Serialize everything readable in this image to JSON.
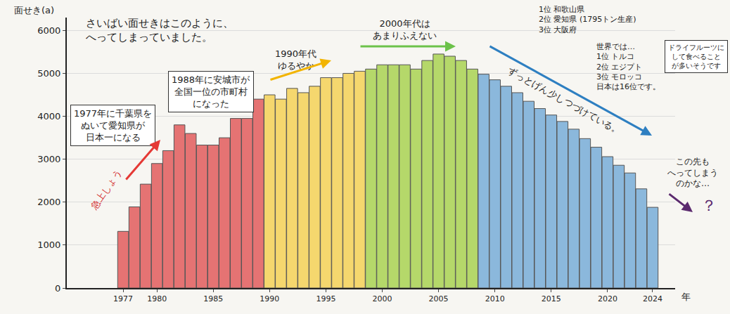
{
  "chart_data": {
    "type": "bar",
    "title": "さいばい面せきはこのように、\nへってしまっていました。",
    "y_label": "面せき(a)",
    "x_label": "年",
    "x": [
      1977,
      1978,
      1979,
      1980,
      1981,
      1982,
      1983,
      1984,
      1985,
      1986,
      1987,
      1988,
      1989,
      1990,
      1991,
      1992,
      1993,
      1994,
      1995,
      1996,
      1997,
      1998,
      1999,
      2000,
      2001,
      2002,
      2003,
      2004,
      2005,
      2006,
      2007,
      2008,
      2009,
      2010,
      2011,
      2012,
      2013,
      2014,
      2015,
      2016,
      2017,
      2018,
      2019,
      2020,
      2021,
      2022,
      2023,
      2024
    ],
    "values": [
      1320,
      1890,
      2420,
      2900,
      3200,
      3800,
      3600,
      3330,
      3330,
      3500,
      3950,
      3950,
      4400,
      4500,
      4400,
      4650,
      4550,
      4700,
      4900,
      4900,
      5000,
      5050,
      5100,
      5200,
      5200,
      5200,
      5100,
      5300,
      5450,
      5400,
      5300,
      5100,
      4980,
      4850,
      4700,
      4550,
      4350,
      4180,
      4030,
      3880,
      3700,
      3480,
      3280,
      3060,
      2860,
      2680,
      2310,
      1880
    ],
    "colors": [
      "#e57373",
      "#e57373",
      "#e57373",
      "#e57373",
      "#e57373",
      "#e57373",
      "#e57373",
      "#e57373",
      "#e57373",
      "#e57373",
      "#e57373",
      "#e57373",
      "#e57373",
      "#f5d76e",
      "#f5d76e",
      "#f5d76e",
      "#f5d76e",
      "#f5d76e",
      "#f5d76e",
      "#f5d76e",
      "#f5d76e",
      "#f5d76e",
      "#b5d86a",
      "#b5d86a",
      "#b5d86a",
      "#b5d86a",
      "#b5d86a",
      "#b5d86a",
      "#b5d86a",
      "#b5d86a",
      "#b5d86a",
      "#b5d86a",
      "#8bb8dc",
      "#8bb8dc",
      "#8bb8dc",
      "#8bb8dc",
      "#8bb8dc",
      "#8bb8dc",
      "#8bb8dc",
      "#8bb8dc",
      "#8bb8dc",
      "#8bb8dc",
      "#8bb8dc",
      "#8bb8dc",
      "#8bb8dc",
      "#8bb8dc",
      "#8bb8dc",
      "#8bb8dc"
    ],
    "xlim": [
      1972,
      2026
    ],
    "xticks": [
      1977,
      1980,
      1985,
      1990,
      1995,
      2000,
      2005,
      2010,
      2015,
      2020,
      2024
    ],
    "ylim": [
      0,
      6300
    ],
    "yticks": [
      0,
      1000,
      2000,
      3000,
      4000,
      5000,
      6000
    ],
    "grid": true,
    "annotations": [
      "1977年に千葉県を\nぬいて愛知県が\n日本一になる",
      "急上しょう",
      "1988年に安城市が\n全国一位の市町村\nになった",
      "1990年代\nゆるやか",
      "2000年代は\nあまりふえない",
      "ずっとげん少しつづけている。",
      "1位 和歌山県\n2位 愛知県 (1795トン生産)\n3位 大阪府",
      "世界では…\n1位 トルコ\n2位 エジプト\n3位 モロッコ\n日本は16位です。",
      "ドライフルーツに\nして食べること\nが多いそうです",
      "この先も\nへってしまう\nのかな…",
      "？"
    ]
  }
}
